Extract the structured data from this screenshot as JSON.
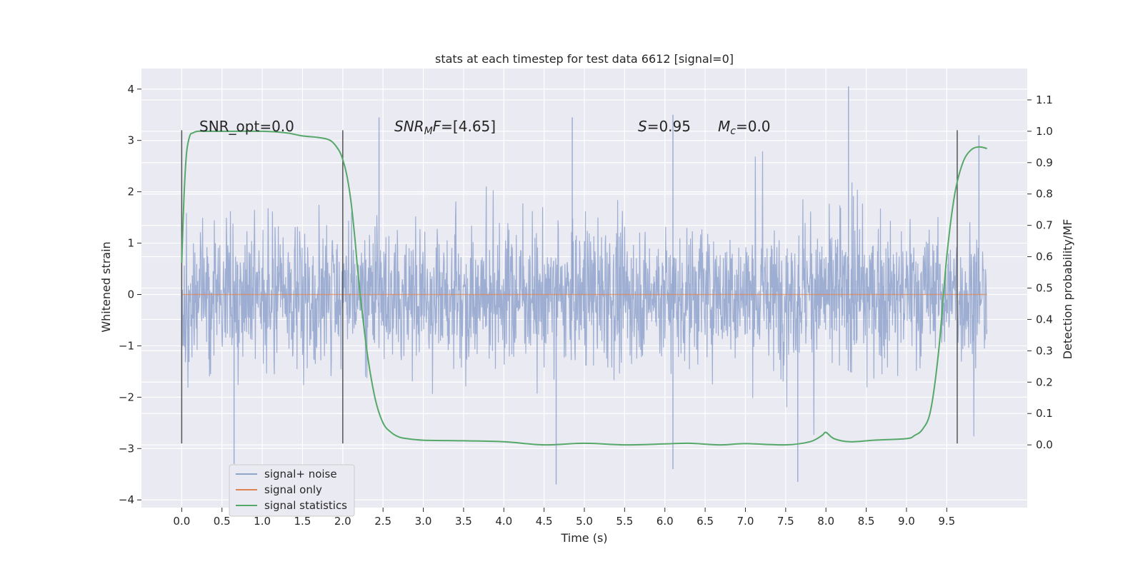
{
  "chart_data": {
    "type": "line",
    "title": "stats at each timestep for test data 6612 [signal=0]",
    "xlabel": "Time (s)",
    "ylabel": "Whitened strain",
    "ylabel_right": "Detection probability/MF",
    "xlim": [
      -0.5,
      10.5
    ],
    "ylim": [
      -4.15,
      4.4
    ],
    "ylim_right": [
      -0.2,
      1.2
    ],
    "x_ticks": [
      "0.0",
      "0.5",
      "1.0",
      "1.5",
      "2.0",
      "2.5",
      "3.0",
      "3.5",
      "4.0",
      "4.5",
      "5.0",
      "5.5",
      "6.0",
      "6.5",
      "7.0",
      "7.5",
      "8.0",
      "8.5",
      "9.0",
      "9.5"
    ],
    "y_ticks": [
      "4",
      "3",
      "2",
      "1",
      "0",
      "−1",
      "−2",
      "−3",
      "−4"
    ],
    "y_ticks_right": [
      "1.1",
      "1.0",
      "0.9",
      "0.8",
      "0.7",
      "0.6",
      "0.5",
      "0.4",
      "0.3",
      "0.2",
      "0.1",
      "0.0"
    ],
    "grid": true,
    "legend_position": "lower-left",
    "background_color": "#eaeaf2",
    "annotations": {
      "snr_opt": "SNR_opt=0.0",
      "snr_mf_italic": "SNR",
      "snr_mf_sub": "M",
      "snr_mf_italic2": "F",
      "snr_mf_value": "=[4.65]",
      "s_italic": "S",
      "s_value": "=0.95",
      "mc_italic": "M",
      "mc_sub": "c",
      "mc_value": "=0.0"
    },
    "window_markers_x": [
      0.0,
      2.0,
      9.63
    ],
    "window_marker_range": [
      -2.9,
      3.2
    ],
    "series": [
      {
        "name": "signal+ noise",
        "color": "#8fa3cc",
        "axis": "left",
        "x_range": [
          0.0,
          10.0
        ],
        "envelope": {
          "typical_min": -1.4,
          "typical_max": 1.4,
          "peak_max": 4.05,
          "peak_min": -3.7
        }
      },
      {
        "name": "signal only",
        "color": "#dd8452",
        "axis": "left",
        "x": [
          0.0,
          10.0
        ],
        "values": [
          0.0,
          0.0
        ]
      },
      {
        "name": "signal statistics",
        "color": "#55a868",
        "axis": "right",
        "x": [
          0.0,
          0.03,
          0.06,
          0.1,
          0.14,
          0.2,
          0.3,
          0.5,
          1.0,
          1.3,
          1.5,
          1.7,
          1.85,
          1.95,
          2.0,
          2.05,
          2.1,
          2.15,
          2.2,
          2.3,
          2.4,
          2.5,
          2.6,
          2.7,
          2.8,
          3.0,
          3.5,
          4.0,
          4.5,
          5.0,
          5.5,
          6.0,
          6.3,
          6.7,
          7.0,
          7.5,
          7.8,
          7.95,
          8.0,
          8.1,
          8.3,
          8.6,
          9.0,
          9.1,
          9.2,
          9.3,
          9.4,
          9.5,
          9.6,
          9.7,
          9.8,
          9.9,
          10.0
        ],
        "values": [
          0.58,
          0.8,
          0.93,
          0.985,
          0.995,
          1.0,
          1.0,
          1.0,
          1.0,
          0.995,
          0.985,
          0.98,
          0.97,
          0.94,
          0.91,
          0.86,
          0.78,
          0.66,
          0.52,
          0.3,
          0.15,
          0.07,
          0.04,
          0.025,
          0.02,
          0.015,
          0.013,
          0.01,
          0.0,
          0.005,
          0.0,
          0.003,
          0.005,
          0.0,
          0.004,
          0.0,
          0.01,
          0.03,
          0.04,
          0.02,
          0.01,
          0.015,
          0.02,
          0.03,
          0.05,
          0.11,
          0.3,
          0.6,
          0.8,
          0.9,
          0.94,
          0.95,
          0.945
        ]
      }
    ]
  }
}
